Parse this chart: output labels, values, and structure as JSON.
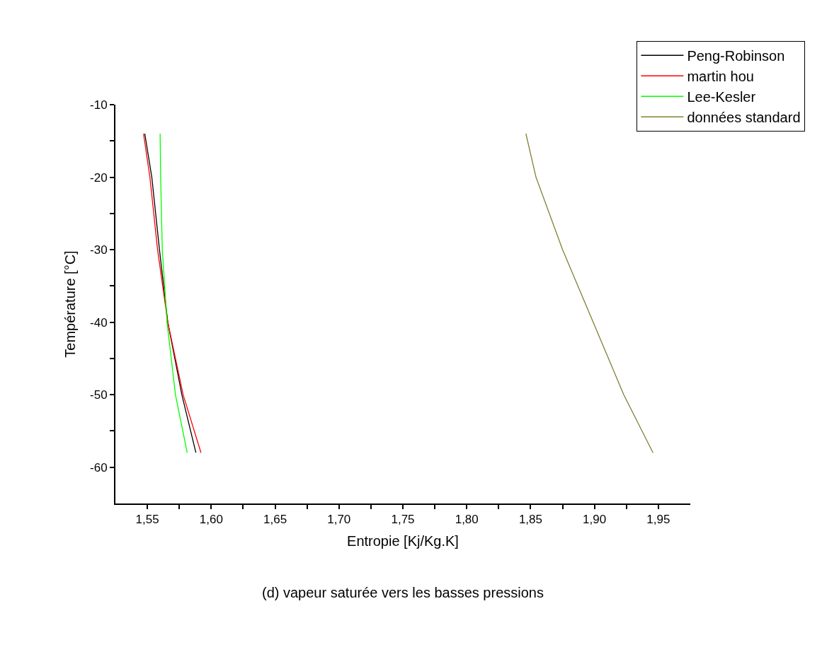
{
  "chart_data": {
    "type": "line",
    "xlabel": "Entropie [Kj/Kg.K]",
    "ylabel": "Température [°C]",
    "annotations": [
      "(d) vapeur saturée vers les basses pressions"
    ],
    "xlim": [
      1.525,
      1.975
    ],
    "xticks": [
      {
        "value": 1.55,
        "label": "1,55"
      },
      {
        "value": 1.575,
        "label": null
      },
      {
        "value": 1.6,
        "label": "1,60"
      },
      {
        "value": 1.625,
        "label": null
      },
      {
        "value": 1.65,
        "label": "1,65"
      },
      {
        "value": 1.675,
        "label": null
      },
      {
        "value": 1.7,
        "label": "1,70"
      },
      {
        "value": 1.725,
        "label": null
      },
      {
        "value": 1.75,
        "label": "1,75"
      },
      {
        "value": 1.775,
        "label": null
      },
      {
        "value": 1.8,
        "label": "1,80"
      },
      {
        "value": 1.825,
        "label": null
      },
      {
        "value": 1.85,
        "label": "1,85"
      },
      {
        "value": 1.875,
        "label": null
      },
      {
        "value": 1.9,
        "label": "1,90"
      },
      {
        "value": 1.925,
        "label": null
      },
      {
        "value": 1.95,
        "label": "1,95"
      }
    ],
    "ylim": [
      -65,
      -10
    ],
    "yticks": [
      -10,
      {
        "value": -15,
        "label": null
      },
      -20,
      {
        "value": -25,
        "label": null
      },
      -30,
      {
        "value": -35,
        "label": null
      },
      -40,
      {
        "value": -45,
        "label": null
      },
      -50,
      {
        "value": -55,
        "label": null
      },
      -60
    ],
    "legend": "top right",
    "series": [
      {
        "name": "Peng-Robinson",
        "color": "#000000",
        "x": [
          1.548,
          1.5535,
          1.5595,
          1.566,
          1.577,
          1.588
        ],
        "values": [
          -14,
          -20,
          -30,
          -40,
          -50,
          -58
        ]
      },
      {
        "name": "martin hou",
        "color": "#ff0000",
        "x": [
          1.547,
          1.552,
          1.558,
          1.566,
          1.578,
          1.592
        ],
        "values": [
          -14,
          -20,
          -30,
          -40,
          -50,
          -58
        ]
      },
      {
        "name": "Lee-Kesler",
        "color": "#00ff00",
        "x": [
          1.56,
          1.5604,
          1.5617,
          1.5654,
          1.572,
          1.5812
        ],
        "values": [
          -14,
          -20,
          -30,
          -40,
          -50,
          -58
        ]
      },
      {
        "name": "données standard",
        "color": "#808033",
        "x": [
          1.8463,
          1.8542,
          1.875,
          1.899,
          1.9229,
          1.9458
        ],
        "values": [
          -14,
          -20,
          -30,
          -40,
          -50,
          -58
        ]
      }
    ]
  }
}
